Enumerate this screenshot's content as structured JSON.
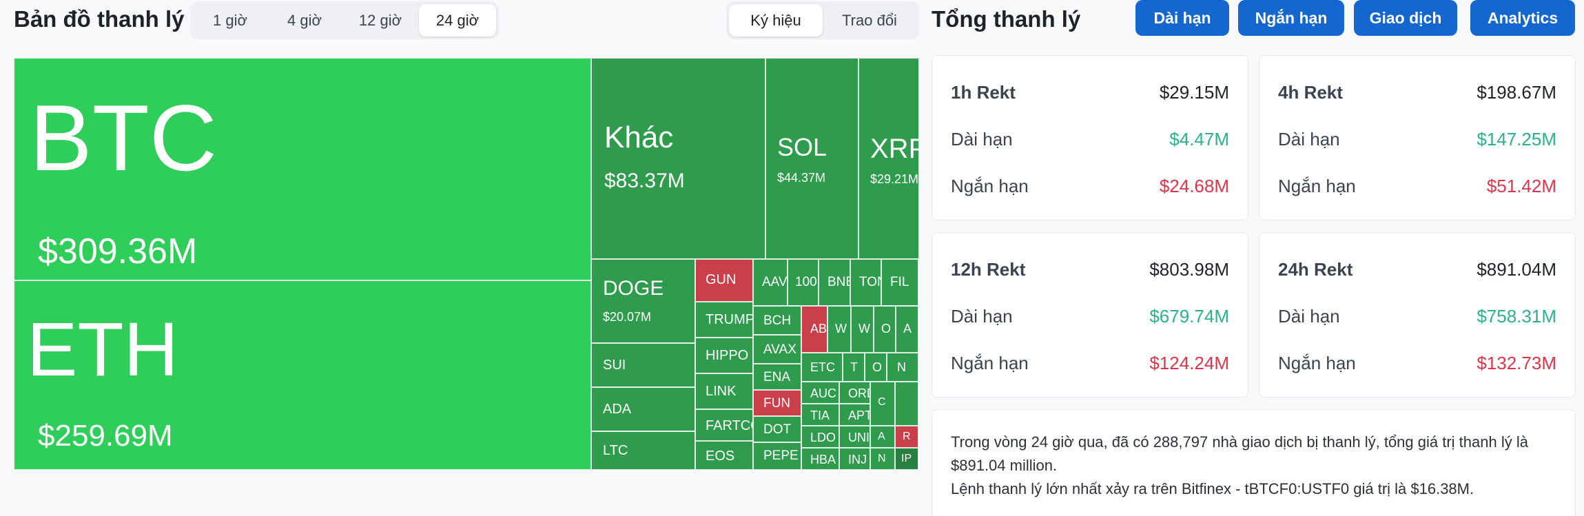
{
  "header": {
    "map_title": "Bản đồ thanh lý",
    "time_options": [
      "1 giờ",
      "4 giờ",
      "12 giờ",
      "24 giờ"
    ],
    "time_selected": "24 giờ",
    "view_options": [
      "Ký hiệu",
      "Trao đổi"
    ],
    "view_selected": "Ký hiệu"
  },
  "summary": {
    "title": "Tổng thanh lý",
    "buttons": {
      "long": "Dài hạn",
      "short": "Ngắn hạn",
      "trade": "Giao dịch",
      "analytics": "Analytics"
    },
    "cards": [
      {
        "title": "1h Rekt",
        "total": "$29.15M",
        "long_label": "Dài hạn",
        "long": "$4.47M",
        "short_label": "Ngắn hạn",
        "short": "$24.68M"
      },
      {
        "title": "4h Rekt",
        "total": "$198.67M",
        "long_label": "Dài hạn",
        "long": "$147.25M",
        "short_label": "Ngắn hạn",
        "short": "$51.42M"
      },
      {
        "title": "12h Rekt",
        "total": "$803.98M",
        "long_label": "Dài hạn",
        "long": "$679.74M",
        "short_label": "Ngắn hạn",
        "short": "$124.24M"
      },
      {
        "title": "24h Rekt",
        "total": "$891.04M",
        "long_label": "Dài hạn",
        "long": "$758.31M",
        "short_label": "Ngắn hạn",
        "short": "$132.73M"
      }
    ],
    "note_line1": "Trong vòng 24 giờ qua, đã có 288,797 nhà giao dịch bị thanh lý, tổng giá trị thanh lý là $891.04 million.",
    "note_line2": "Lệnh thanh lý lớn nhất xảy ra trên Bitfinex - tBTCF0:USTF0 giá trị là $16.38M."
  },
  "treemap": {
    "btc": {
      "sym": "BTC",
      "val": "$309.36M"
    },
    "eth": {
      "sym": "ETH",
      "val": "$259.69M"
    },
    "other": {
      "sym": "Khác",
      "val": "$83.37M"
    },
    "sol": {
      "sym": "SOL",
      "val": "$44.37M"
    },
    "xrp": {
      "sym": "XRP",
      "val": "$29.21M"
    },
    "doge": {
      "sym": "DOGE",
      "val": "$20.07M"
    },
    "sui": "SUI",
    "ada": "ADA",
    "ltc": "LTC",
    "gun": "GUN",
    "trump": "TRUMP",
    "hippo": "HIPPO",
    "link": "LINK",
    "fartco": "FARTCO",
    "eos": "EOS",
    "aave": "AAVE",
    "k100": "100",
    "bnb": "BNB",
    "ton": "TON",
    "fil": "FIL",
    "bch": "BCH",
    "avax": "AVAX",
    "ena": "ENA",
    "fun": "FUN",
    "dot": "DOT",
    "pepe": "PEPE",
    "ab": "AB",
    "w1": "W",
    "w2": "W",
    "o1": "O",
    "a1": "A",
    "etc": "ETC",
    "t1": "T",
    "o2": "O",
    "n1": "N",
    "auc": "AUC",
    "tia": "TIA",
    "ldo": "LDO",
    "hba": "HBA",
    "ord": "ORD",
    "apt": "APT",
    "uni": "UNI",
    "inj": "INJ",
    "c1": "C",
    "a2": "A",
    "r1": "R",
    "n2": "N",
    "ip": "IP"
  }
}
